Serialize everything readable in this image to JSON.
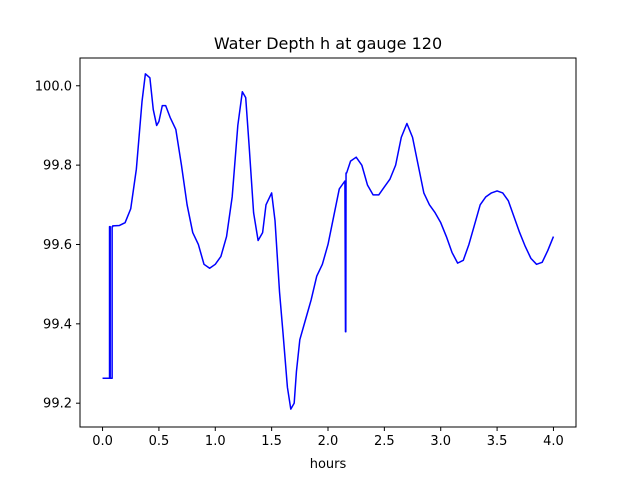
{
  "chart_data": {
    "type": "line",
    "title": "Water Depth h at gauge 120",
    "xlabel": "hours",
    "ylabel": "",
    "xlim": [
      -0.2,
      4.2
    ],
    "ylim": [
      99.14,
      100.07
    ],
    "xticks": [
      0.0,
      0.5,
      1.0,
      1.5,
      2.0,
      2.5,
      3.0,
      3.5,
      4.0
    ],
    "xtick_labels": [
      "0.0",
      "0.5",
      "1.0",
      "1.5",
      "2.0",
      "2.5",
      "3.0",
      "3.5",
      "4.0"
    ],
    "yticks": [
      99.2,
      99.4,
      99.6,
      99.8,
      100.0
    ],
    "ytick_labels": [
      "99.2",
      "99.4",
      "99.6",
      "99.8",
      "100.0"
    ],
    "grid": false,
    "series": [
      {
        "name": "",
        "color": "#0000ff",
        "x": [
          0.0,
          0.062,
          0.062,
          0.068,
          0.068,
          0.085,
          0.085,
          0.09,
          0.09,
          0.15,
          0.2,
          0.25,
          0.3,
          0.35,
          0.38,
          0.42,
          0.45,
          0.48,
          0.5,
          0.53,
          0.56,
          0.6,
          0.65,
          0.7,
          0.75,
          0.8,
          0.85,
          0.9,
          0.95,
          1.0,
          1.05,
          1.1,
          1.15,
          1.2,
          1.24,
          1.27,
          1.3,
          1.34,
          1.38,
          1.42,
          1.45,
          1.5,
          1.53,
          1.57,
          1.6,
          1.64,
          1.67,
          1.7,
          1.72,
          1.75,
          1.8,
          1.85,
          1.9,
          1.95,
          2.0,
          2.05,
          2.1,
          2.15,
          2.155,
          2.158,
          2.16,
          2.165,
          2.2,
          2.25,
          2.3,
          2.35,
          2.4,
          2.45,
          2.5,
          2.55,
          2.6,
          2.65,
          2.7,
          2.75,
          2.8,
          2.85,
          2.9,
          2.95,
          3.0,
          3.05,
          3.1,
          3.15,
          3.2,
          3.25,
          3.3,
          3.35,
          3.4,
          3.45,
          3.5,
          3.55,
          3.6,
          3.65,
          3.7,
          3.75,
          3.8,
          3.85,
          3.9,
          3.95,
          4.0
        ],
        "y": [
          99.263,
          99.263,
          99.645,
          99.645,
          99.263,
          99.263,
          99.645,
          99.645,
          99.647,
          99.648,
          99.655,
          99.69,
          99.79,
          99.96,
          100.03,
          100.02,
          99.94,
          99.9,
          99.91,
          99.95,
          99.95,
          99.92,
          99.89,
          99.8,
          99.7,
          99.63,
          99.6,
          99.55,
          99.54,
          99.55,
          99.57,
          99.62,
          99.72,
          99.9,
          99.985,
          99.97,
          99.85,
          99.68,
          99.61,
          99.63,
          99.7,
          99.73,
          99.66,
          99.48,
          99.38,
          99.24,
          99.185,
          99.2,
          99.28,
          99.36,
          99.41,
          99.46,
          99.52,
          99.55,
          99.6,
          99.67,
          99.74,
          99.76,
          99.38,
          99.38,
          99.78,
          99.78,
          99.81,
          99.82,
          99.8,
          99.75,
          99.725,
          99.725,
          99.745,
          99.765,
          99.8,
          99.87,
          99.905,
          99.87,
          99.8,
          99.73,
          99.7,
          99.68,
          99.655,
          99.62,
          99.58,
          99.553,
          99.56,
          99.6,
          99.65,
          99.7,
          99.72,
          99.73,
          99.735,
          99.73,
          99.71,
          99.67,
          99.63,
          99.595,
          99.565,
          99.55,
          99.555,
          99.585,
          99.62
        ]
      }
    ]
  }
}
